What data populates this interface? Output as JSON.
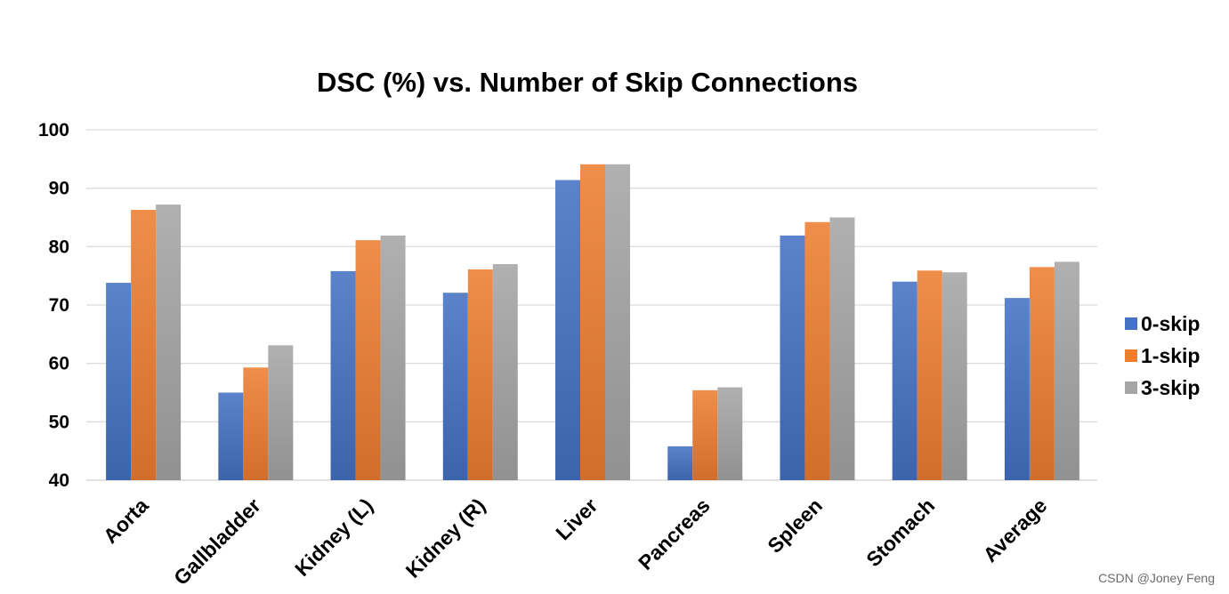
{
  "chart_data": {
    "type": "bar",
    "title": "DSC (%) vs. Number of Skip Connections",
    "xlabel": "",
    "ylabel": "",
    "ylim": [
      40,
      100
    ],
    "yticks": [
      40,
      50,
      60,
      70,
      80,
      90,
      100
    ],
    "grid": true,
    "legend_position": "right",
    "categories": [
      "Aorta",
      "Gallbladder",
      "Kidney (L)",
      "Kidney (R)",
      "Liver",
      "Pancreas",
      "Spleen",
      "Stomach",
      "Average"
    ],
    "series": [
      {
        "name": "0-skip",
        "color": "#4472c4",
        "values": [
          73.8,
          55.0,
          75.8,
          72.1,
          91.4,
          45.8,
          81.9,
          74.0,
          71.2
        ]
      },
      {
        "name": "1-skip",
        "color": "#ed7d31",
        "values": [
          86.3,
          59.3,
          81.1,
          76.1,
          94.1,
          55.4,
          84.2,
          75.9,
          76.5
        ]
      },
      {
        "name": "3-skip",
        "color": "#a5a5a5",
        "values": [
          87.2,
          63.1,
          81.9,
          77.0,
          94.1,
          55.9,
          85.0,
          75.6,
          77.4
        ]
      }
    ]
  },
  "watermark": "CSDN @Joney Feng"
}
